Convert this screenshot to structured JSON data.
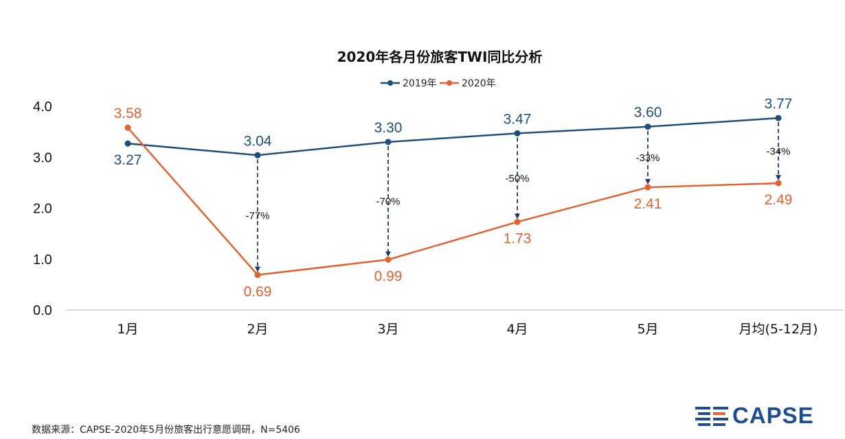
{
  "chart_data": {
    "type": "line",
    "title": "2020年各月份旅客TWI同比分析",
    "categories": [
      "1月",
      "2月",
      "3月",
      "4月",
      "5月",
      "月均(5-12月)"
    ],
    "series": [
      {
        "name": "2019年",
        "color": "#1f4e79",
        "values": [
          3.27,
          3.04,
          3.3,
          3.47,
          3.6,
          3.77
        ],
        "labels": [
          "3.27",
          "3.04",
          "3.30",
          "3.47",
          "3.60",
          "3.77"
        ]
      },
      {
        "name": "2020年",
        "color": "#e0622f",
        "values": [
          3.58,
          0.69,
          0.99,
          1.73,
          2.41,
          2.49
        ],
        "labels": [
          "3.58",
          "0.69",
          "0.99",
          "1.73",
          "2.41",
          "2.49"
        ]
      }
    ],
    "yticks": [
      "0.0",
      "1.0",
      "2.0",
      "3.0",
      "4.0"
    ],
    "ylim": [
      0,
      4
    ],
    "legend": "top-center",
    "changes": [
      {
        "category_index": 1,
        "label": "-77%"
      },
      {
        "category_index": 2,
        "label": "-70%"
      },
      {
        "category_index": 3,
        "label": "-50%"
      },
      {
        "category_index": 4,
        "label": "-33%"
      },
      {
        "category_index": 5,
        "label": "-34%"
      }
    ]
  },
  "footer": {
    "source": "数据来源：CAPSE-2020年5月份旅客出行意愿调研，N=5406",
    "logo_text": "CAPSE",
    "logo_color": "#1f4e8c",
    "logo_accent": "#e0622f"
  }
}
